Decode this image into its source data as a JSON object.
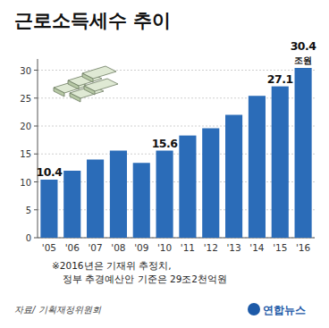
{
  "chart_data": {
    "type": "bar",
    "title": "근로소득세수 추이",
    "categories": [
      "'05",
      "'06",
      "'07",
      "'08",
      "'09",
      "'10",
      "'11",
      "'12",
      "'13",
      "'14",
      "'15",
      "'16"
    ],
    "values": [
      10.4,
      12.0,
      14.0,
      15.6,
      13.4,
      15.6,
      18.3,
      19.6,
      22.0,
      25.4,
      27.1,
      30.4
    ],
    "value_labels": [
      "10.4",
      null,
      null,
      null,
      null,
      "15.6",
      null,
      null,
      null,
      null,
      "27.1",
      "30.4"
    ],
    "data_labels": true,
    "unit": "조원",
    "color": "#2b6cb8",
    "ylim": [
      0,
      32
    ],
    "yticks": [
      0,
      5,
      10,
      15,
      20,
      25,
      30
    ],
    "grid": true,
    "notes": [
      "※2016년은 기재위 추정치,",
      "정부 추경예산안 기준은 29조2천억원"
    ],
    "source": "자료/ 기획재정위원회",
    "credit": "연합뉴스"
  }
}
